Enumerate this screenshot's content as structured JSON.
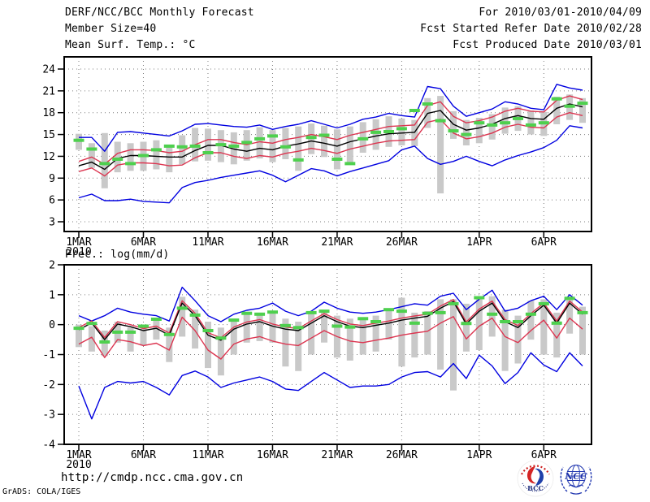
{
  "header": {
    "left": [
      "DERF/NCC/BCC Monthly Forecast",
      "Member Size=40",
      "Mean Surf. Temp.: °C"
    ],
    "right": [
      "For 2010/03/01-2010/04/09",
      "Fcst Started Refer Date 2010/02/28",
      "Fcst Produced Date 2010/03/01"
    ]
  },
  "prec_title": "Prec.: log(mm/d)",
  "footer": {
    "url": "http://cmdp.ncc.cma.gov.cn",
    "stamp": "GrADS: COLA/IGES"
  },
  "logos": {
    "bcc_label": "BCC",
    "ncc_label": "NCC"
  },
  "colors": {
    "line_blue": "#0000e0",
    "line_red": "#dc3550",
    "line_black": "#000000",
    "obs_green": "#4ed04e",
    "spread_gray": "#c9c9c9",
    "grid_gray": "#7d7d7d",
    "logo_navy": "#22307e",
    "logo_red": "#cc2222",
    "logo_blue": "#2238b0"
  },
  "chart_data": [
    {
      "type": "line",
      "name": "surface-temperature",
      "title": "Mean Surf. Temp.: °C",
      "xlabel": "",
      "ylabel": "°C",
      "ylim": [
        1.7,
        25.7
      ],
      "yticks": [
        24,
        21,
        18,
        15,
        12,
        9,
        6,
        3
      ],
      "grid": "dotted",
      "legend": "none",
      "n_days": 40,
      "date_span": "2010/03/01-2010/04/09",
      "xticks": [
        {
          "day": 0,
          "label": "1MAR",
          "sublabel": "2010"
        },
        {
          "day": 5,
          "label": "6MAR"
        },
        {
          "day": 10,
          "label": "11MAR"
        },
        {
          "day": 15,
          "label": "16MAR"
        },
        {
          "day": 20,
          "label": "21MAR"
        },
        {
          "day": 25,
          "label": "26MAR"
        },
        {
          "day": 31,
          "label": "1APR"
        },
        {
          "day": 36,
          "label": "6APR"
        }
      ],
      "bars": {
        "name": "ensemble-spread-bar",
        "high": [
          15.1,
          13.8,
          15.2,
          14.0,
          13.8,
          14.0,
          14.2,
          13.6,
          14.9,
          15.9,
          15.8,
          15.6,
          15.3,
          15.6,
          16.0,
          15.6,
          15.9,
          16.1,
          16.5,
          16.2,
          15.7,
          16.1,
          16.7,
          17.1,
          17.5,
          17.2,
          17.0,
          20.0,
          20.3,
          18.2,
          17.0,
          17.3,
          17.8,
          18.7,
          18.9,
          18.3,
          18.1,
          20.2,
          20.5,
          20.0
        ],
        "low": [
          12.9,
          10.4,
          7.6,
          9.8,
          10.0,
          10.0,
          10.2,
          9.8,
          10.9,
          11.3,
          11.4,
          11.2,
          10.9,
          11.4,
          11.7,
          11.2,
          11.6,
          10.0,
          12.3,
          11.9,
          10.2,
          11.0,
          12.5,
          12.9,
          13.3,
          13.5,
          13.4,
          15.9,
          6.9,
          14.4,
          13.5,
          13.8,
          14.3,
          15.1,
          15.5,
          15.0,
          14.8,
          16.4,
          17.0,
          16.6
        ]
      },
      "series": [
        {
          "name": "ensemble-max",
          "colorKey": "line_blue",
          "values": [
            14.6,
            14.6,
            12.7,
            15.3,
            15.4,
            15.2,
            15.0,
            14.8,
            15.5,
            16.4,
            16.5,
            16.3,
            16.1,
            16.0,
            16.3,
            15.7,
            16.1,
            16.4,
            16.9,
            16.4,
            15.9,
            16.4,
            17.1,
            17.4,
            17.9,
            17.6,
            17.4,
            21.6,
            21.3,
            18.9,
            17.5,
            18.0,
            18.5,
            19.5,
            19.2,
            18.6,
            18.4,
            21.9,
            21.4,
            21.1
          ]
        },
        {
          "name": "ensemble-min",
          "colorKey": "line_blue",
          "values": [
            6.3,
            6.8,
            5.9,
            5.9,
            6.1,
            5.8,
            5.7,
            5.6,
            7.7,
            8.4,
            8.7,
            9.1,
            9.4,
            9.7,
            10.0,
            9.4,
            8.5,
            9.4,
            10.3,
            10.0,
            9.3,
            9.9,
            10.4,
            10.9,
            11.4,
            12.9,
            13.4,
            11.7,
            10.9,
            11.3,
            12.0,
            11.3,
            10.7,
            11.5,
            12.1,
            12.6,
            13.2,
            14.2,
            16.2,
            15.9
          ]
        },
        {
          "name": "mean-plus-spread",
          "colorKey": "line_red",
          "values": [
            11.3,
            11.9,
            10.9,
            12.4,
            12.9,
            12.9,
            12.8,
            12.5,
            12.7,
            13.6,
            14.3,
            14.3,
            13.9,
            13.6,
            14.0,
            13.8,
            14.3,
            14.6,
            15.0,
            14.7,
            14.3,
            14.9,
            15.3,
            15.7,
            16.1,
            16.2,
            16.3,
            19.0,
            19.5,
            17.5,
            16.6,
            16.9,
            17.4,
            18.2,
            18.6,
            18.2,
            18.1,
            19.7,
            20.3,
            19.8
          ]
        },
        {
          "name": "mean-minus-spread",
          "colorKey": "line_red",
          "values": [
            9.9,
            10.4,
            9.3,
            10.8,
            11.1,
            11.1,
            11.0,
            10.7,
            10.8,
            11.8,
            12.5,
            12.5,
            12.0,
            11.7,
            12.1,
            11.9,
            12.4,
            12.7,
            13.1,
            12.8,
            12.4,
            13.0,
            13.4,
            13.8,
            14.1,
            14.2,
            14.3,
            16.7,
            17.1,
            15.2,
            14.4,
            14.7,
            15.2,
            16.0,
            16.4,
            16.0,
            15.9,
            17.4,
            18.0,
            17.6
          ]
        },
        {
          "name": "ensemble-mean",
          "colorKey": "line_black",
          "values": [
            10.7,
            11.2,
            10.2,
            11.7,
            12.1,
            12.1,
            12.0,
            11.9,
            11.9,
            12.8,
            13.5,
            13.5,
            13.0,
            12.7,
            13.1,
            12.9,
            13.4,
            13.7,
            14.1,
            13.8,
            13.4,
            14.0,
            14.4,
            14.8,
            15.1,
            15.2,
            15.3,
            17.9,
            18.3,
            16.4,
            15.6,
            15.9,
            16.4,
            17.2,
            17.6,
            17.2,
            17.1,
            18.6,
            19.2,
            18.8
          ]
        },
        {
          "name": "observation-dashes",
          "colorKey": "obs_green",
          "style": "dash-markers",
          "values": [
            14.2,
            13.0,
            11.0,
            11.6,
            11.0,
            12.1,
            12.9,
            13.4,
            13.3,
            13.4,
            12.5,
            13.6,
            13.4,
            13.9,
            14.4,
            14.8,
            13.3,
            11.5,
            14.6,
            14.9,
            11.6,
            11.0,
            14.4,
            15.3,
            15.4,
            15.8,
            18.3,
            19.2,
            16.9,
            15.5,
            15.0,
            16.6,
            16.3,
            16.6,
            17.2,
            16.3,
            16.6,
            19.9,
            18.9,
            19.3
          ]
        }
      ]
    },
    {
      "type": "line",
      "name": "precipitation",
      "title": "Prec.: log(mm/d)",
      "xlabel": "",
      "ylabel": "log(mm/d)",
      "ylim": [
        -4,
        2
      ],
      "yticks": [
        2,
        1,
        0,
        -1,
        -2,
        -3,
        -4
      ],
      "grid": "dotted",
      "legend": "none",
      "n_days": 40,
      "date_span": "2010/03/01-2010/04/09",
      "xticks": [
        {
          "day": 0,
          "label": "1MAR",
          "sublabel": "2010"
        },
        {
          "day": 5,
          "label": "6MAR"
        },
        {
          "day": 10,
          "label": "11MAR"
        },
        {
          "day": 15,
          "label": "16MAR"
        },
        {
          "day": 20,
          "label": "21MAR"
        },
        {
          "day": 25,
          "label": "26MAR"
        },
        {
          "day": 31,
          "label": "1APR"
        },
        {
          "day": 36,
          "label": "6APR"
        }
      ],
      "bars": {
        "name": "ensemble-spread-bar",
        "high": [
          0.0,
          -0.05,
          -0.2,
          0.1,
          -0.1,
          0.0,
          0.15,
          -0.1,
          0.93,
          0.5,
          0.1,
          -0.1,
          0.2,
          0.38,
          0.4,
          0.45,
          0.2,
          0.1,
          0.35,
          0.5,
          0.3,
          0.2,
          0.25,
          0.3,
          0.5,
          0.9,
          0.4,
          0.45,
          0.85,
          0.85,
          0.7,
          0.95,
          0.95,
          0.5,
          0.3,
          0.8,
          0.85,
          0.4,
          0.93,
          0.6
        ],
        "low": [
          -0.75,
          -0.9,
          -1.05,
          -0.6,
          -0.9,
          -0.7,
          -0.5,
          -1.25,
          -0.4,
          -0.8,
          -1.45,
          -1.7,
          -1.0,
          -0.6,
          -0.55,
          -0.6,
          -1.4,
          -1.55,
          -1.0,
          -0.6,
          -1.1,
          -1.2,
          -1.0,
          -0.9,
          -0.5,
          -1.4,
          -1.1,
          -1.0,
          -1.5,
          -2.2,
          -0.9,
          -0.85,
          -0.4,
          -1.55,
          -1.3,
          -0.5,
          -1.0,
          -1.1,
          -0.3,
          -1.0
        ]
      },
      "series": [
        {
          "name": "ensemble-max",
          "colorKey": "line_blue",
          "values": [
            0.3,
            0.12,
            0.3,
            0.55,
            0.42,
            0.35,
            0.3,
            0.12,
            1.25,
            0.8,
            0.3,
            0.1,
            0.35,
            0.48,
            0.55,
            0.72,
            0.45,
            0.3,
            0.45,
            0.75,
            0.55,
            0.42,
            0.38,
            0.42,
            0.5,
            0.6,
            0.7,
            0.65,
            0.95,
            1.05,
            0.5,
            0.85,
            1.15,
            0.45,
            0.55,
            0.8,
            0.95,
            0.5,
            1.0,
            0.65
          ]
        },
        {
          "name": "ensemble-min",
          "colorKey": "line_blue",
          "values": [
            -2.05,
            -3.15,
            -2.1,
            -1.9,
            -1.95,
            -1.9,
            -2.1,
            -2.35,
            -1.7,
            -1.55,
            -1.75,
            -2.1,
            -1.95,
            -1.85,
            -1.75,
            -1.9,
            -2.15,
            -2.2,
            -1.9,
            -1.6,
            -1.85,
            -2.1,
            -2.05,
            -2.05,
            -2.0,
            -1.75,
            -1.6,
            -1.57,
            -1.75,
            -1.3,
            -1.8,
            -1.02,
            -1.38,
            -1.97,
            -1.6,
            -0.94,
            -1.35,
            -1.57,
            -0.94,
            -1.38
          ]
        },
        {
          "name": "mean-plus-spread",
          "colorKey": "line_red",
          "values": [
            -0.1,
            0.13,
            -0.43,
            0.1,
            0.0,
            -0.13,
            -0.05,
            -0.28,
            0.8,
            0.38,
            -0.27,
            -0.44,
            -0.08,
            0.09,
            0.17,
            0.02,
            -0.08,
            -0.13,
            0.12,
            0.37,
            0.17,
            0.02,
            -0.03,
            0.05,
            0.12,
            0.22,
            0.29,
            0.35,
            0.62,
            0.84,
            0.09,
            0.52,
            0.79,
            0.17,
            -0.03,
            0.37,
            0.72,
            0.12,
            0.79,
            0.42
          ]
        },
        {
          "name": "mean-minus-spread",
          "colorKey": "line_red",
          "values": [
            -0.65,
            -0.42,
            -1.1,
            -0.5,
            -0.57,
            -0.7,
            -0.62,
            -0.85,
            0.25,
            -0.2,
            -0.85,
            -1.15,
            -0.65,
            -0.48,
            -0.4,
            -0.55,
            -0.65,
            -0.7,
            -0.45,
            -0.2,
            -0.4,
            -0.55,
            -0.6,
            -0.52,
            -0.45,
            -0.35,
            -0.28,
            -0.22,
            0.05,
            0.27,
            -0.48,
            -0.05,
            0.22,
            -0.4,
            -0.6,
            -0.2,
            0.15,
            -0.45,
            0.22,
            -0.15
          ]
        },
        {
          "name": "ensemble-mean",
          "colorKey": "line_black",
          "values": [
            -0.17,
            0.06,
            -0.5,
            0.02,
            -0.07,
            -0.2,
            -0.12,
            -0.35,
            0.72,
            0.3,
            -0.35,
            -0.52,
            -0.15,
            0.02,
            0.1,
            -0.05,
            -0.15,
            -0.2,
            0.05,
            0.3,
            0.1,
            -0.05,
            -0.1,
            -0.02,
            0.05,
            0.15,
            0.22,
            0.28,
            0.55,
            0.77,
            0.02,
            0.45,
            0.72,
            0.1,
            -0.1,
            0.3,
            0.65,
            0.05,
            0.72,
            0.35
          ]
        },
        {
          "name": "observation-dashes",
          "colorKey": "obs_green",
          "style": "dash-markers",
          "values": [
            -0.12,
            0.04,
            -0.58,
            -0.25,
            -0.25,
            -0.05,
            0.18,
            -0.33,
            0.55,
            0.32,
            -0.2,
            -0.45,
            0.15,
            0.38,
            0.35,
            0.42,
            -0.03,
            -0.1,
            0.4,
            0.45,
            -0.05,
            -0.08,
            0.2,
            0.1,
            0.5,
            0.45,
            0.05,
            0.38,
            0.4,
            0.7,
            0.04,
            0.9,
            0.35,
            0.1,
            0.1,
            0.35,
            0.7,
            0.05,
            0.88,
            0.4
          ]
        }
      ]
    }
  ]
}
